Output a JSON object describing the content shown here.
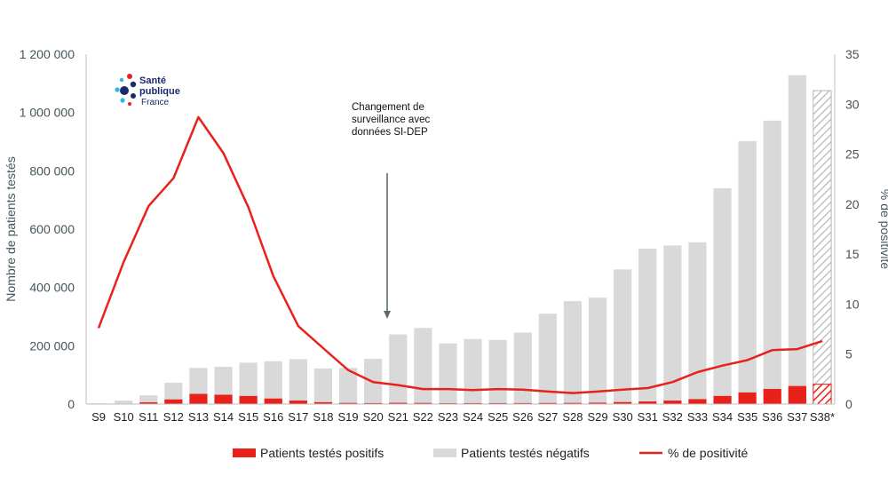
{
  "colors": {
    "positive": "#e8211b",
    "negative": "#d9d9d9",
    "line": "#e8211b",
    "axis_text": "#44545b"
  },
  "logo": {
    "line1": "Santé",
    "line2": "publique",
    "line3": "France"
  },
  "chart_data": {
    "type": "bar",
    "categories": [
      "S9",
      "S10",
      "S11",
      "S12",
      "S13",
      "S14",
      "S15",
      "S16",
      "S17",
      "S18",
      "S19",
      "S20",
      "S21",
      "S22",
      "S23",
      "S24",
      "S25",
      "S26",
      "S27",
      "S28",
      "S29",
      "S30",
      "S31",
      "S32",
      "S33",
      "S34",
      "S35",
      "S36",
      "S37",
      "S38*"
    ],
    "series": [
      {
        "name": "Patients testés positifs",
        "kind": "bar",
        "axis": "left",
        "values": [
          400,
          1500,
          6000,
          16000,
          35000,
          32000,
          28000,
          19000,
          12000,
          6500,
          4000,
          3400,
          4500,
          4000,
          3000,
          3200,
          3400,
          3500,
          3800,
          4000,
          4800,
          7000,
          9000,
          12000,
          17000,
          28000,
          40000,
          52000,
          62000,
          68000
        ]
      },
      {
        "name": "Patients testés négatifs",
        "kind": "bar",
        "axis": "left",
        "stacked": true,
        "values": [
          2600,
          10500,
          24000,
          57000,
          89000,
          96000,
          114000,
          128000,
          142000,
          115500,
          120000,
          151600,
          234500,
          257000,
          205000,
          219800,
          216600,
          241500,
          306200,
          349000,
          360200,
          455000,
          524000,
          532000,
          538000,
          712000,
          862000,
          920000,
          1066000,
          1007000
        ]
      },
      {
        "name": "% de positivité",
        "kind": "line",
        "axis": "right",
        "values": [
          7.6,
          14.2,
          19.8,
          22.6,
          28.7,
          25.1,
          19.7,
          12.8,
          7.8,
          5.6,
          3.4,
          2.2,
          1.9,
          1.5,
          1.5,
          1.4,
          1.5,
          1.45,
          1.25,
          1.1,
          1.25,
          1.45,
          1.6,
          2.2,
          3.2,
          3.85,
          4.4,
          5.4,
          5.5,
          6.3
        ]
      }
    ],
    "hatched_category": "S38*",
    "ylabel": "Nombre de patients testés",
    "y2label": "% de positivité",
    "ylim": [
      0,
      1200000
    ],
    "y2lim": [
      0,
      35
    ],
    "yticks": [
      "0",
      "200 000",
      "400 000",
      "600 000",
      "800 000",
      "1 000 000",
      "1 200 000"
    ],
    "y2ticks": [
      "0",
      "5",
      "10",
      "15",
      "20",
      "25",
      "30",
      "35"
    ],
    "annotation": {
      "lines": [
        "Changement de",
        "surveillance avec",
        "données SI-DEP"
      ],
      "category": "S21"
    },
    "legend_position": "bottom"
  }
}
